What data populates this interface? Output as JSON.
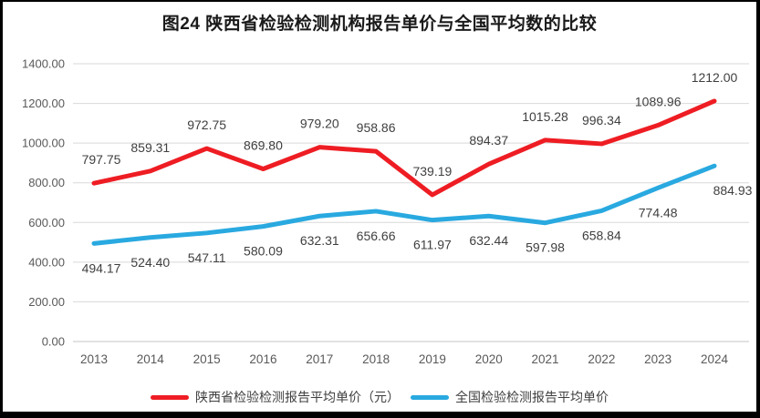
{
  "title": "图24 陕西省检验检测机构报告单价与全国平均数的比较",
  "colors": {
    "shaanxi_line": "#ee1d23",
    "national_line": "#29a9e0",
    "gridline": "#d9d9d9",
    "axis_line": "#c6c6c6",
    "data_label": "#3f3f3f",
    "tick_label": "#595959",
    "frame_border": "#000000",
    "background": "#ffffff"
  },
  "chart_data": {
    "type": "line",
    "title": "图24 陕西省检验检测机构报告单价与全国平均数的比较",
    "categories": [
      "2013",
      "2014",
      "2015",
      "2016",
      "2017",
      "2018",
      "2019",
      "2020",
      "2021",
      "2022",
      "2023",
      "2024"
    ],
    "series": [
      {
        "name": "陕西省检验检测报告平均单价（元）",
        "color": "#ee1d23",
        "values": [
          797.75,
          859.31,
          972.75,
          869.8,
          979.2,
          958.86,
          739.19,
          894.37,
          1015.28,
          996.34,
          1089.96,
          1212.0
        ],
        "label_position": "above",
        "label_dx": [
          8,
          0,
          0,
          0,
          0,
          0,
          0,
          0,
          0,
          0,
          0,
          0
        ]
      },
      {
        "name": "全国检验检测报告平均单价",
        "color": "#29a9e0",
        "values": [
          494.17,
          524.4,
          547.11,
          580.09,
          632.31,
          656.66,
          611.97,
          632.44,
          597.98,
          658.84,
          774.48,
          884.93
        ],
        "label_position": "below",
        "label_dx": [
          8,
          0,
          0,
          0,
          0,
          0,
          0,
          0,
          0,
          0,
          0,
          20
        ]
      }
    ],
    "xlabel": "",
    "ylabel": "",
    "ylim": [
      0,
      1400
    ],
    "ytick_step": 200,
    "ytick_labels": [
      "0.00",
      "200.00",
      "400.00",
      "600.00",
      "800.00",
      "1000.00",
      "1200.00",
      "1400.00"
    ],
    "grid": true,
    "legend_position": "bottom",
    "value_decimals": 2
  }
}
